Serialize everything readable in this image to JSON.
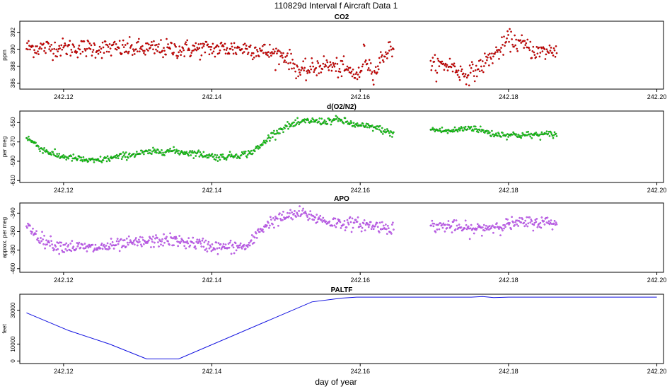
{
  "title": "110829d   Interval f Aircraft Data 1",
  "xlabel": "day of year",
  "colors": {
    "co2": "#e00000",
    "co2_dark": "#7a0000",
    "o2n2": "#19e619",
    "o2n2_dark": "#0b5e0b",
    "apo": "#cf6ee6",
    "apo_dark": "#8a2bd6",
    "paltf": "#1010e0"
  },
  "chart_data": [
    {
      "type": "scatter",
      "title": "CO2",
      "ylabel": "ppm",
      "xlim": [
        242.1141,
        242.2009
      ],
      "ylim": [
        385.3,
        393.3
      ],
      "x_ticks": [
        "242.12",
        "242.14",
        "242.16",
        "242.18",
        "242.20"
      ],
      "y_ticks": [
        "386",
        "388",
        "390",
        "392"
      ],
      "segments": [
        [
          242.115,
          242.1645
        ],
        [
          242.1695,
          242.1865
        ]
      ],
      "trend": {
        "x": [
          242.115,
          242.125,
          242.135,
          242.145,
          242.15,
          242.152,
          242.155,
          242.158,
          242.16,
          242.1605,
          242.161,
          242.162,
          242.163,
          242.1645,
          242.1695,
          242.172,
          242.174,
          242.1755,
          242.1775,
          242.179,
          242.18,
          242.182,
          242.184,
          242.1865
        ],
        "y": [
          390.2,
          390.1,
          390.0,
          390.1,
          389.2,
          387.2,
          388.2,
          387.6,
          386.8,
          389.6,
          388.4,
          387.2,
          389.2,
          390.4,
          388.0,
          388.2,
          387.0,
          387.4,
          389.0,
          390.0,
          391.2,
          390.5,
          389.6,
          389.9
        ]
      },
      "noise_sd": 0.55
    },
    {
      "type": "scatter",
      "title": "d(O2/N2)",
      "ylabel": "per meg",
      "xlim": [
        242.1141,
        242.2009
      ],
      "ylim": [
        -612,
        -538
      ],
      "x_ticks": [
        "242.12",
        "242.14",
        "242.16",
        "242.18",
        "242.20"
      ],
      "y_ticks": [
        "-550",
        "-570",
        "-590",
        "-610"
      ],
      "segments": [
        [
          242.115,
          242.1645
        ],
        [
          242.1695,
          242.1865
        ]
      ],
      "trend": {
        "x": [
          242.115,
          242.117,
          242.119,
          242.124,
          242.13,
          242.134,
          242.138,
          242.141,
          242.145,
          242.1465,
          242.148,
          242.15,
          242.153,
          242.155,
          242.157,
          242.158,
          242.1595,
          242.162,
          242.1645,
          242.1695,
          242.172,
          242.175,
          242.178,
          242.182,
          242.1865
        ],
        "y": [
          -565,
          -577,
          -584,
          -590,
          -582,
          -579,
          -582,
          -586,
          -582,
          -575,
          -563,
          -554,
          -548,
          -549,
          -547,
          -549,
          -553,
          -555,
          -562,
          -557,
          -559,
          -555,
          -562,
          -563,
          -562
        ]
      },
      "noise_sd": 1.8
    },
    {
      "type": "scatter",
      "title": "APO",
      "ylabel": "approx. per meg",
      "xlim": [
        242.1141,
        242.2009
      ],
      "ylim": [
        -404,
        -329
      ],
      "x_ticks": [
        "242.12",
        "242.14",
        "242.16",
        "242.18",
        "242.20"
      ],
      "y_ticks": [
        "-340",
        "-360",
        "-380",
        "-400"
      ],
      "segments": [
        [
          242.115,
          242.1645
        ],
        [
          242.1695,
          242.1865
        ]
      ],
      "trend": {
        "x": [
          242.115,
          242.117,
          242.119,
          242.124,
          242.13,
          242.134,
          242.138,
          242.141,
          242.145,
          242.1465,
          242.148,
          242.15,
          242.152,
          242.156,
          242.16,
          242.1645,
          242.1695,
          242.172,
          242.175,
          242.18,
          242.183,
          242.1865
        ],
        "y": [
          -353,
          -368,
          -375,
          -378,
          -372,
          -369,
          -373,
          -377,
          -376,
          -358,
          -349,
          -344,
          -340,
          -350,
          -352,
          -356,
          -354,
          -354,
          -358,
          -352,
          -350,
          -350
        ]
      },
      "noise_sd": 3.4
    },
    {
      "type": "line",
      "title": "PALTF",
      "ylabel": "feet",
      "xlim": [
        242.1141,
        242.2009
      ],
      "ylim": [
        -1500,
        39500
      ],
      "x_ticks": [
        "242.12",
        "242.14",
        "242.16",
        "242.18",
        "242.20"
      ],
      "y_ticks": [
        "0",
        "10000",
        "30000"
      ],
      "x": [
        242.115,
        242.1207,
        242.1262,
        242.1312,
        242.1355,
        242.1535,
        242.1575,
        242.1595,
        242.175,
        242.1765,
        242.178,
        242.18,
        242.2
      ],
      "y": [
        28500,
        18000,
        10000,
        1200,
        1200,
        35000,
        37200,
        37800,
        37800,
        38100,
        37500,
        37800,
        37800
      ]
    }
  ]
}
